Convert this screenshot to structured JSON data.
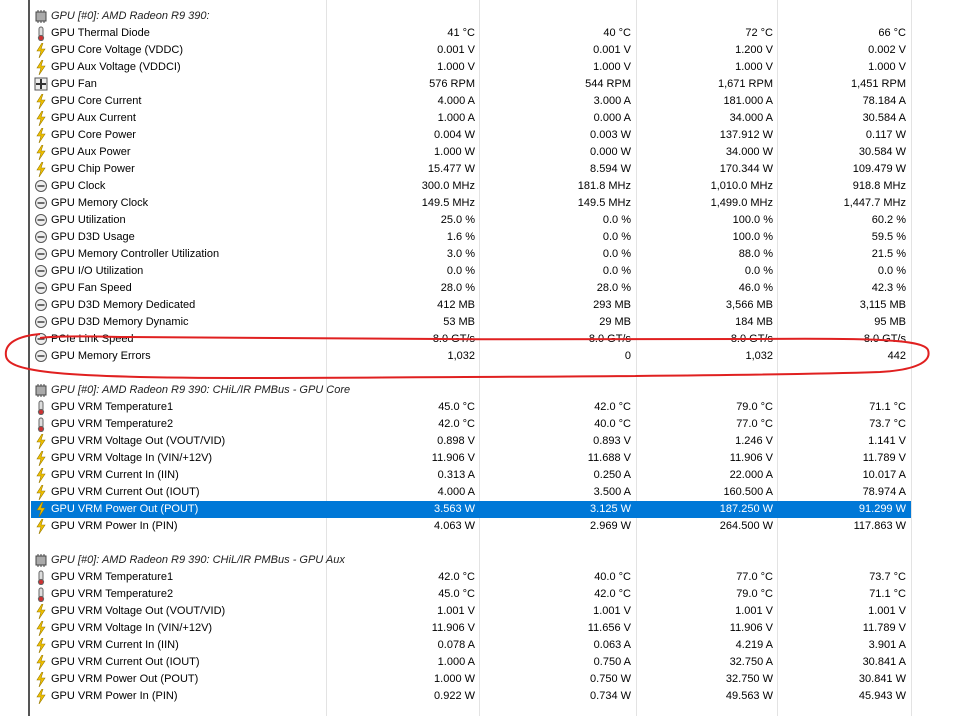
{
  "sections": [
    {
      "title": "GPU [#0]: AMD Radeon R9 390:",
      "rows": [
        {
          "label": "GPU Thermal Diode",
          "icon": "temp",
          "values": [
            "41 °C",
            "40 °C",
            "72 °C",
            "66 °C"
          ]
        },
        {
          "label": "GPU Core Voltage (VDDC)",
          "icon": "volt",
          "values": [
            "0.001 V",
            "0.001 V",
            "1.200 V",
            "0.002 V"
          ]
        },
        {
          "label": "GPU Aux Voltage (VDDCI)",
          "icon": "volt",
          "values": [
            "1.000 V",
            "1.000 V",
            "1.000 V",
            "1.000 V"
          ]
        },
        {
          "label": "GPU Fan",
          "icon": "fan",
          "values": [
            "576 RPM",
            "544 RPM",
            "1,671 RPM",
            "1,451 RPM"
          ]
        },
        {
          "label": "GPU Core Current",
          "icon": "volt",
          "values": [
            "4.000 A",
            "3.000 A",
            "181.000 A",
            "78.184 A"
          ]
        },
        {
          "label": "GPU Aux Current",
          "icon": "volt",
          "values": [
            "1.000 A",
            "0.000 A",
            "34.000 A",
            "30.584 A"
          ]
        },
        {
          "label": "GPU Core Power",
          "icon": "volt",
          "values": [
            "0.004 W",
            "0.003 W",
            "137.912 W",
            "0.117 W"
          ]
        },
        {
          "label": "GPU Aux Power",
          "icon": "volt",
          "values": [
            "1.000 W",
            "0.000 W",
            "34.000 W",
            "30.584 W"
          ]
        },
        {
          "label": "GPU Chip Power",
          "icon": "volt",
          "values": [
            "15.477 W",
            "8.594 W",
            "170.344 W",
            "109.479 W"
          ]
        },
        {
          "label": "GPU Clock",
          "icon": "gauge",
          "values": [
            "300.0 MHz",
            "181.8 MHz",
            "1,010.0 MHz",
            "918.8 MHz"
          ]
        },
        {
          "label": "GPU Memory Clock",
          "icon": "gauge",
          "values": [
            "149.5 MHz",
            "149.5 MHz",
            "1,499.0 MHz",
            "1,447.7 MHz"
          ]
        },
        {
          "label": "GPU Utilization",
          "icon": "gauge",
          "values": [
            "25.0 %",
            "0.0 %",
            "100.0 %",
            "60.2 %"
          ]
        },
        {
          "label": "GPU D3D Usage",
          "icon": "gauge",
          "values": [
            "1.6 %",
            "0.0 %",
            "100.0 %",
            "59.5 %"
          ]
        },
        {
          "label": "GPU Memory Controller Utilization",
          "icon": "gauge",
          "values": [
            "3.0 %",
            "0.0 %",
            "88.0 %",
            "21.5 %"
          ]
        },
        {
          "label": "GPU I/O Utilization",
          "icon": "gauge",
          "values": [
            "0.0 %",
            "0.0 %",
            "0.0 %",
            "0.0 %"
          ]
        },
        {
          "label": "GPU Fan Speed",
          "icon": "gauge",
          "values": [
            "28.0 %",
            "28.0 %",
            "46.0 %",
            "42.3 %"
          ]
        },
        {
          "label": "GPU D3D Memory Dedicated",
          "icon": "gauge",
          "values": [
            "412 MB",
            "293 MB",
            "3,566 MB",
            "3,115 MB"
          ]
        },
        {
          "label": "GPU D3D Memory Dynamic",
          "icon": "gauge",
          "values": [
            "53 MB",
            "29 MB",
            "184 MB",
            "95 MB"
          ]
        },
        {
          "label": "PCIe Link Speed",
          "icon": "gauge",
          "values": [
            "8.0 GT/s",
            "8.0 GT/s",
            "8.0 GT/s",
            "8.0 GT/s"
          ]
        },
        {
          "label": "GPU Memory Errors",
          "icon": "gauge",
          "values": [
            "1,032",
            "0",
            "1,032",
            "442"
          ]
        }
      ]
    },
    {
      "title": "GPU [#0]: AMD Radeon R9 390: CHiL/IR PMBus - GPU Core",
      "rows": [
        {
          "label": "GPU VRM Temperature1",
          "icon": "temp",
          "values": [
            "45.0 °C",
            "42.0 °C",
            "79.0 °C",
            "71.1 °C"
          ]
        },
        {
          "label": "GPU VRM Temperature2",
          "icon": "temp",
          "values": [
            "42.0 °C",
            "40.0 °C",
            "77.0 °C",
            "73.7 °C"
          ]
        },
        {
          "label": "GPU VRM Voltage Out (VOUT/VID)",
          "icon": "volt",
          "values": [
            "0.898 V",
            "0.893 V",
            "1.246 V",
            "1.141 V"
          ]
        },
        {
          "label": "GPU VRM Voltage In (VIN/+12V)",
          "icon": "volt",
          "values": [
            "11.906 V",
            "11.688 V",
            "11.906 V",
            "11.789 V"
          ]
        },
        {
          "label": "GPU VRM Current In (IIN)",
          "icon": "volt",
          "values": [
            "0.313 A",
            "0.250 A",
            "22.000 A",
            "10.017 A"
          ]
        },
        {
          "label": "GPU VRM Current Out (IOUT)",
          "icon": "volt",
          "values": [
            "4.000 A",
            "3.500 A",
            "160.500 A",
            "78.974 A"
          ]
        },
        {
          "label": "GPU VRM Power Out (POUT)",
          "icon": "volt",
          "selected": true,
          "values": [
            "3.563 W",
            "3.125 W",
            "187.250 W",
            "91.299 W"
          ]
        },
        {
          "label": "GPU VRM Power In (PIN)",
          "icon": "volt",
          "values": [
            "4.063 W",
            "2.969 W",
            "264.500 W",
            "117.863 W"
          ]
        }
      ]
    },
    {
      "title": "GPU [#0]: AMD Radeon R9 390: CHiL/IR PMBus - GPU Aux",
      "rows": [
        {
          "label": "GPU VRM Temperature1",
          "icon": "temp",
          "values": [
            "42.0 °C",
            "40.0 °C",
            "77.0 °C",
            "73.7 °C"
          ]
        },
        {
          "label": "GPU VRM Temperature2",
          "icon": "temp",
          "values": [
            "45.0 °C",
            "42.0 °C",
            "79.0 °C",
            "71.1 °C"
          ]
        },
        {
          "label": "GPU VRM Voltage Out (VOUT/VID)",
          "icon": "volt",
          "values": [
            "1.001 V",
            "1.001 V",
            "1.001 V",
            "1.001 V"
          ]
        },
        {
          "label": "GPU VRM Voltage In (VIN/+12V)",
          "icon": "volt",
          "values": [
            "11.906 V",
            "11.656 V",
            "11.906 V",
            "11.789 V"
          ]
        },
        {
          "label": "GPU VRM Current In (IIN)",
          "icon": "volt",
          "values": [
            "0.078 A",
            "0.063 A",
            "4.219 A",
            "3.901 A"
          ]
        },
        {
          "label": "GPU VRM Current Out (IOUT)",
          "icon": "volt",
          "values": [
            "1.000 A",
            "0.750 A",
            "32.750 A",
            "30.841 A"
          ]
        },
        {
          "label": "GPU VRM Power Out (POUT)",
          "icon": "volt",
          "values": [
            "1.000 W",
            "0.750 W",
            "32.750 W",
            "30.841 W"
          ]
        },
        {
          "label": "GPU VRM Power In (PIN)",
          "icon": "volt",
          "values": [
            "0.922 W",
            "0.734 W",
            "49.563 W",
            "45.943 W"
          ]
        }
      ]
    }
  ]
}
